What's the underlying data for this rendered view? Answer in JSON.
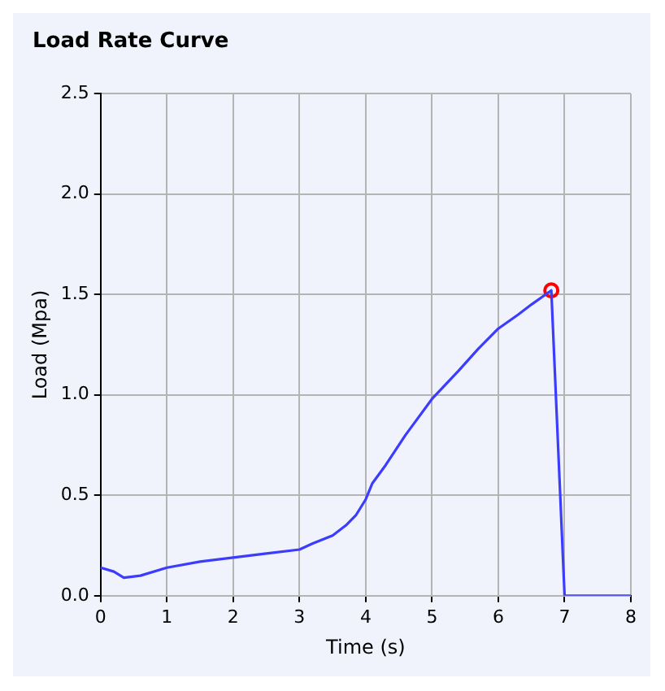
{
  "chart_data": {
    "type": "line",
    "title": "Load Rate Curve",
    "xlabel": "Time (s)",
    "ylabel": "Load (Mpa)",
    "xlim": [
      0,
      8
    ],
    "xticks": [
      0,
      1,
      2,
      3,
      4,
      5,
      6,
      7,
      8
    ],
    "ylim": [
      0,
      2.5
    ],
    "yticks": [
      {
        "value": 0,
        "label": "0.0"
      },
      {
        "value": 0.5,
        "label": "0.5"
      },
      {
        "value": 1,
        "label": "1.0"
      },
      {
        "value": 1.5,
        "label": "1.5"
      },
      {
        "value": 2,
        "label": "2.0"
      },
      {
        "value": 2.5,
        "label": "2.5"
      }
    ],
    "grid": true,
    "legend": false,
    "series": [
      {
        "color": "#3c3cff",
        "marker": "none",
        "x": [
          0,
          0.2,
          0.35,
          0.6,
          1,
          1.5,
          2,
          2.5,
          3,
          3.2,
          3.5,
          3.7,
          3.85,
          4,
          4.1,
          4.3,
          4.6,
          5,
          5.4,
          5.7,
          6,
          6.3,
          6.5,
          6.8,
          7,
          8
        ],
        "values": [
          0.14,
          0.12,
          0.09,
          0.1,
          0.14,
          0.17,
          0.19,
          0.21,
          0.23,
          0.26,
          0.3,
          0.35,
          0.4,
          0.48,
          0.56,
          0.65,
          0.8,
          0.98,
          1.12,
          1.23,
          1.33,
          1.4,
          1.45,
          1.52,
          0,
          0
        ]
      },
      {
        "type": "scatter",
        "color": "#ff0000",
        "marker": "circle",
        "x": [
          6.8
        ],
        "values": [
          1.52
        ]
      }
    ]
  }
}
